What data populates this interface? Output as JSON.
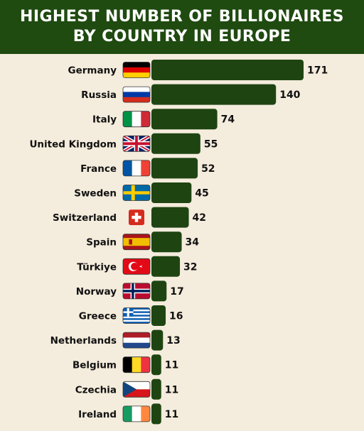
{
  "header": {
    "title_line1": "HIGHEST NUMBER OF BILLIONAIRES",
    "title_line2": "BY COUNTRY IN EUROPE"
  },
  "colors": {
    "background": "#f4ecdc",
    "header_bg": "#1f4a10",
    "bar": "#1e4412",
    "text": "#111111"
  },
  "chart_data": {
    "type": "bar",
    "orientation": "horizontal",
    "title": "HIGHEST NUMBER OF BILLIONAIRES BY COUNTRY IN EUROPE",
    "categories": [
      "Germany",
      "Russia",
      "Italy",
      "United Kingdom",
      "France",
      "Sweden",
      "Switzerland",
      "Spain",
      "Türkiye",
      "Norway",
      "Greece",
      "Netherlands",
      "Belgium",
      "Czechia",
      "Ireland"
    ],
    "values": [
      171,
      140,
      74,
      55,
      52,
      45,
      42,
      34,
      32,
      17,
      16,
      13,
      11,
      11,
      11
    ],
    "flags": [
      "germany-flag-icon",
      "russia-flag-icon",
      "italy-flag-icon",
      "uk-flag-icon",
      "france-flag-icon",
      "sweden-flag-icon",
      "switzerland-flag-icon",
      "spain-flag-icon",
      "turkiye-flag-icon",
      "norway-flag-icon",
      "greece-flag-icon",
      "netherlands-flag-icon",
      "belgium-flag-icon",
      "czechia-flag-icon",
      "ireland-flag-icon"
    ],
    "xlim": [
      0,
      171
    ],
    "grid": false,
    "legend": "none",
    "xlabel": "",
    "ylabel": ""
  }
}
